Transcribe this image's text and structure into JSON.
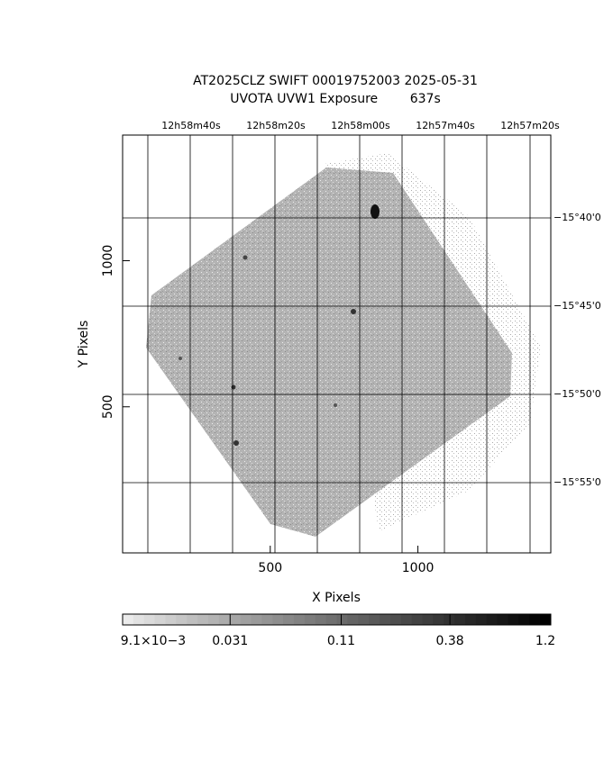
{
  "chart_data": {
    "type": "image",
    "title": "AT2025CLZ SWIFT 00019752003 2025-05-31",
    "subtitle": "UVOTA UVW1 Exposure        637s",
    "xlabel": "X Pixels",
    "ylabel": "Y Pixels",
    "xlim": [
      0,
      1450
    ],
    "ylim": [
      0,
      1430
    ],
    "xticks": [
      500,
      1000
    ],
    "yticks": [
      500,
      1000
    ],
    "ra_labels": [
      "12h58m40s",
      "12h58m20s",
      "12h58m00s",
      "12h57m40s",
      "12h57m20s"
    ],
    "dec_labels": [
      "−15°40'0",
      "−15°45'0",
      "−15°50'0",
      "−15°55'0"
    ],
    "color_scale": "log",
    "clim": [
      0.0091,
      1.2
    ],
    "cticks": [
      {
        "value": 0.0091,
        "label": "9.1×10−3"
      },
      0.031,
      0.11,
      0.38,
      1.2
    ]
  }
}
